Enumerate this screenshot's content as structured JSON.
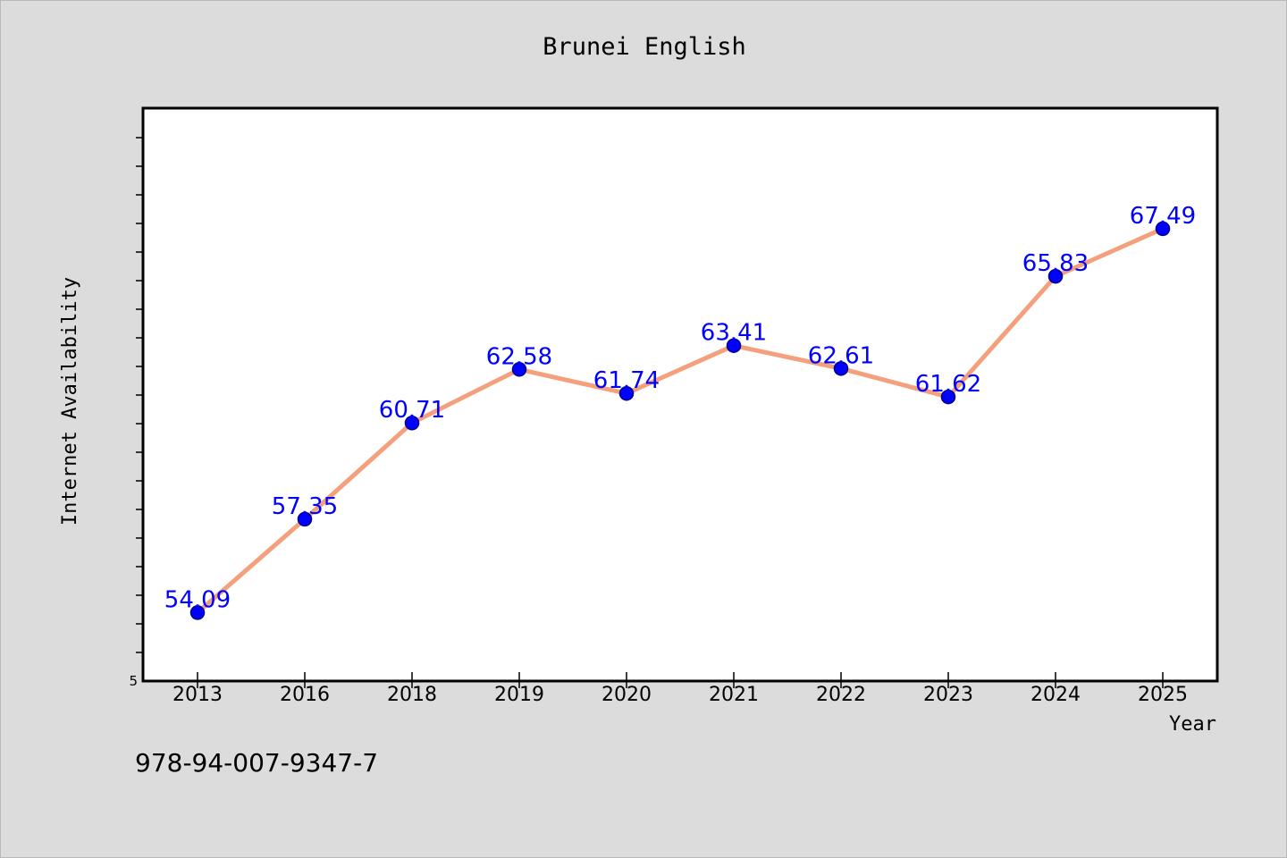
{
  "chart_data": {
    "type": "line",
    "title": "Brunei English",
    "xlabel": "Year",
    "ylabel": "Internet Availability",
    "categories": [
      "2013",
      "2016",
      "2018",
      "2019",
      "2020",
      "2021",
      "2022",
      "2023",
      "2024",
      "2025"
    ],
    "values": [
      54.09,
      57.35,
      60.71,
      62.58,
      61.74,
      63.41,
      62.61,
      61.62,
      65.83,
      67.49
    ],
    "data_labels": [
      "54.09",
      "57.35",
      "60.71",
      "62.58",
      "61.74",
      "63.41",
      "62.61",
      "61.62",
      "65.83",
      "67.49"
    ],
    "ylim": [
      51.7,
      71.7
    ],
    "y_tick_labels": [
      "5"
    ],
    "grid": false,
    "legend": "none",
    "colors": {
      "line": "#f4a07c",
      "marker": "#0000ff",
      "marker_edge": "#00008b",
      "data_label": "#0000ff",
      "background": "#dcdcdc",
      "plot_background": "#ffffff"
    }
  },
  "footer": {
    "isbn": "978-94-007-9347-7"
  }
}
